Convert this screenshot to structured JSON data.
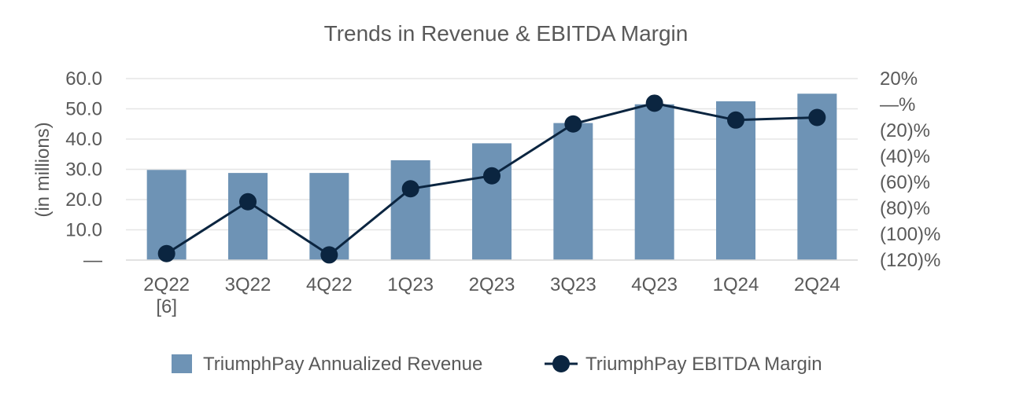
{
  "chart_data": {
    "type": "bar",
    "title": "Trends in Revenue & EBITDA Margin",
    "ylabel": "(in millions)",
    "categories": [
      [
        "2Q22",
        "[6]"
      ],
      [
        "3Q22"
      ],
      [
        "4Q22"
      ],
      [
        "1Q23"
      ],
      [
        "2Q23"
      ],
      [
        "3Q23"
      ],
      [
        "4Q23"
      ],
      [
        "1Q24"
      ],
      [
        "2Q24"
      ]
    ],
    "ylim": [
      0,
      60
    ],
    "y2lim": [
      -120,
      20
    ],
    "y_ticks": [
      {
        "value": 60,
        "label": "60.0"
      },
      {
        "value": 50,
        "label": "50.0"
      },
      {
        "value": 40,
        "label": "40.0"
      },
      {
        "value": 30,
        "label": "30.0"
      },
      {
        "value": 20,
        "label": "20.0"
      },
      {
        "value": 10,
        "label": "10.0"
      },
      {
        "value": 0,
        "label": "—"
      }
    ],
    "y2_ticks": [
      {
        "value": 20,
        "label": "20%"
      },
      {
        "value": 0,
        "label": "—%"
      },
      {
        "value": -20,
        "label": "(20)%"
      },
      {
        "value": -40,
        "label": "(40)%"
      },
      {
        "value": -60,
        "label": "(60)%"
      },
      {
        "value": -80,
        "label": "(80)%"
      },
      {
        "value": -100,
        "label": "(100)%"
      },
      {
        "value": -120,
        "label": "(120)%"
      }
    ],
    "grid": true,
    "series": [
      {
        "name": "TriumphPay Annualized Revenue",
        "type": "bar",
        "axis": "left",
        "color": "#6e93b5",
        "values": [
          29.8,
          28.8,
          28.8,
          33.0,
          38.6,
          45.3,
          51.5,
          52.5,
          55.0
        ]
      },
      {
        "name": "TriumphPay EBITDA Margin",
        "type": "line",
        "axis": "right",
        "color": "#0b2540",
        "values": [
          -115,
          -75,
          -116,
          -65,
          -55,
          -15,
          1,
          -12,
          -10
        ]
      }
    ],
    "legend_position": "bottom"
  }
}
